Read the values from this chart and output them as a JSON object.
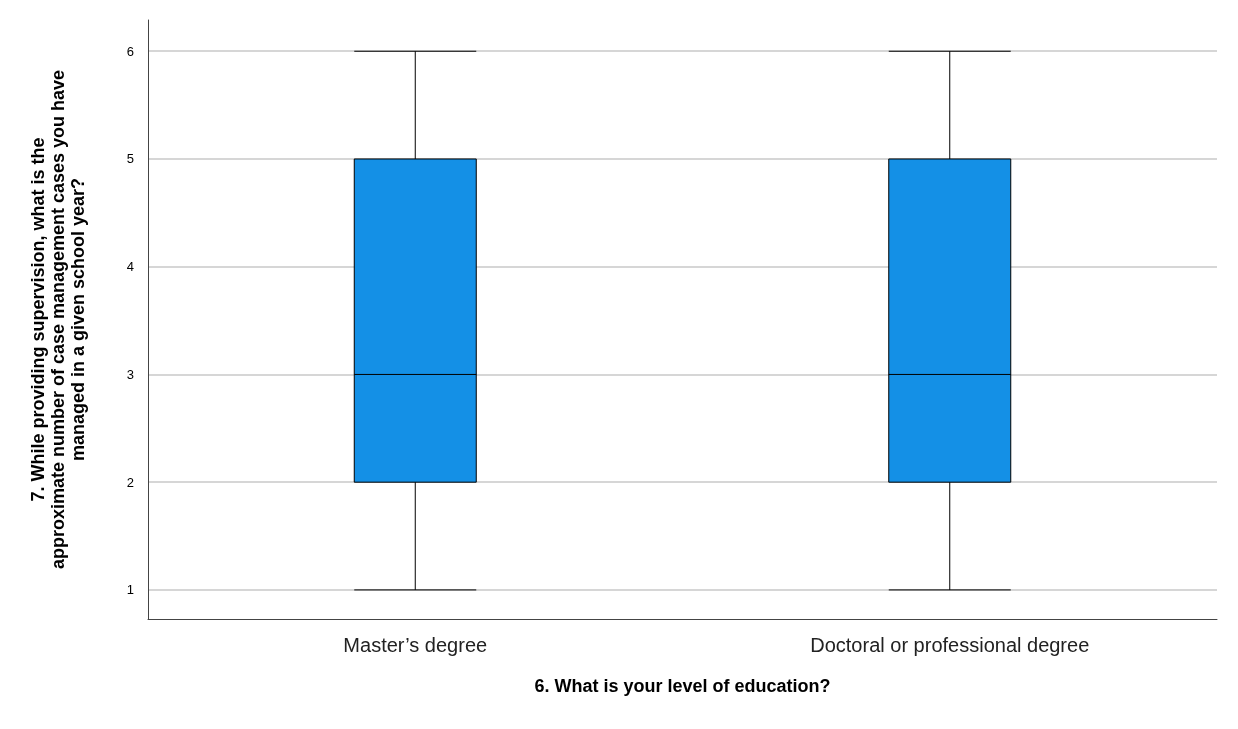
{
  "chart_data": {
    "type": "box",
    "xlabel": "6. What is your level of education?",
    "ylabel": "7. While providing supervision, what is the approximate number of case management cases you have managed in a given school year?",
    "categories": [
      "Master’s degree",
      "Doctoral or professional degree"
    ],
    "series": [
      {
        "color": "#1490e6",
        "boxes": [
          {
            "low": 1,
            "q1": 2,
            "median": 3,
            "q3": 5,
            "high": 6
          },
          {
            "low": 1,
            "q1": 2,
            "median": 3,
            "q3": 5,
            "high": 6
          }
        ]
      }
    ],
    "ylim": [
      0.73,
      6.29
    ],
    "yticks": [
      1,
      2,
      3,
      4,
      5,
      6
    ],
    "grid": "y"
  }
}
